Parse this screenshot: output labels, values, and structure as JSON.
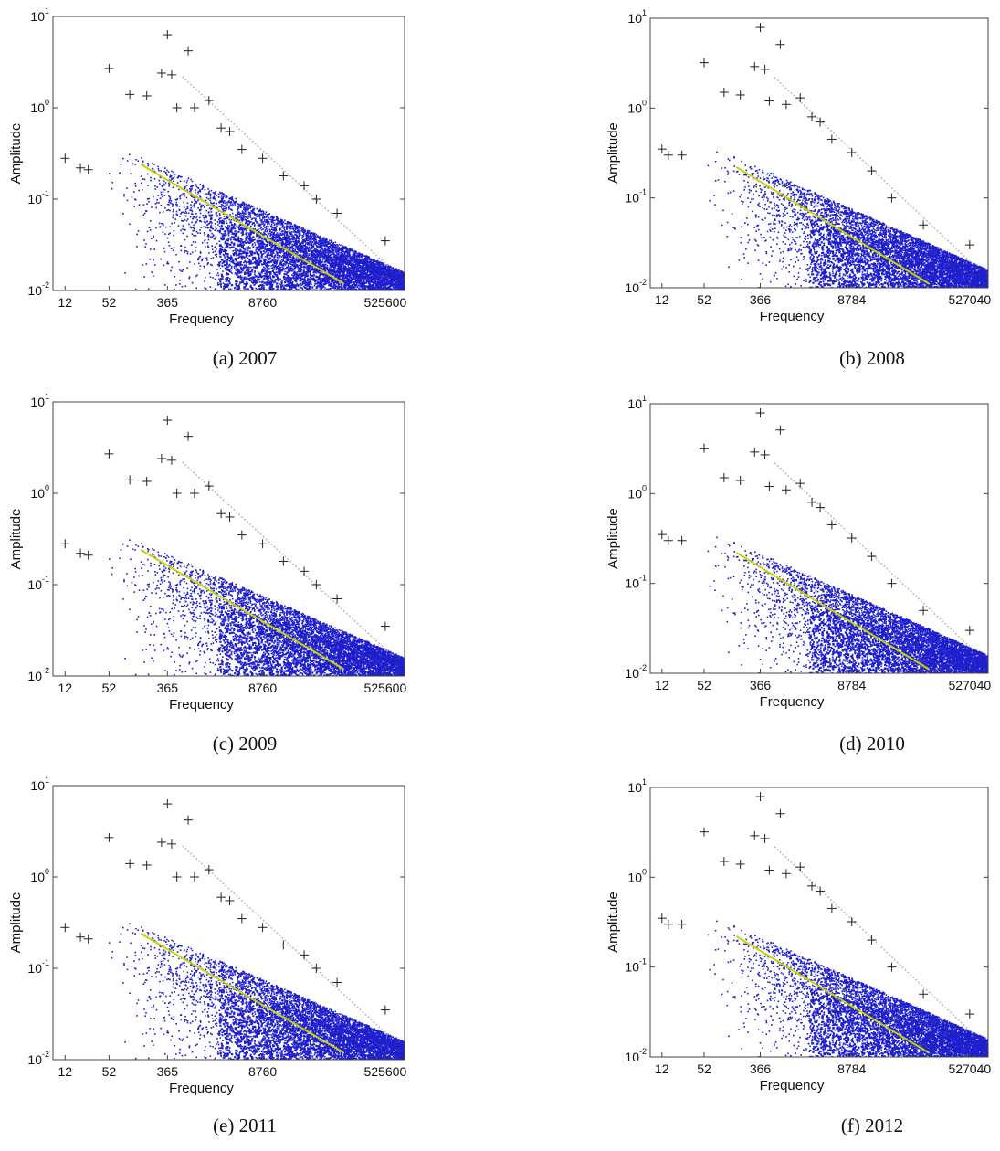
{
  "panels": [
    {
      "caption": "(a) 2007",
      "chart_data": {
        "type": "scatter",
        "xlabel": "Frequency",
        "ylabel": "Amplitude",
        "x_scale": "log",
        "y_scale": "log",
        "xlim": [
          8,
          1000000
        ],
        "ylim": [
          0.01,
          10
        ],
        "xticks": [
          12,
          52,
          365,
          8760,
          525600
        ],
        "yticks": [
          {
            "value": 0.01,
            "base": "10",
            "exp": "-2"
          },
          {
            "value": 0.1,
            "base": "10",
            "exp": "-1"
          },
          {
            "value": 1,
            "base": "10",
            "exp": "0"
          },
          {
            "value": 10,
            "base": "10",
            "exp": "1"
          }
        ],
        "series": [
          {
            "marker": "dots",
            "color": "#1f1fcc"
          },
          {
            "marker": "plus",
            "color": "#222222",
            "points": [
              [
                12,
                0.28
              ],
              [
                20,
                0.22
              ],
              [
                26,
                0.21
              ],
              [
                52,
                2.7
              ],
              [
                104,
                1.4
              ],
              [
                183,
                1.35
              ],
              [
                365,
                6.3
              ],
              [
                300,
                2.4
              ],
              [
                420,
                2.3
              ],
              [
                730,
                4.2
              ],
              [
                500,
                1.0
              ],
              [
                900,
                1.0
              ],
              [
                1460,
                1.2
              ],
              [
                2190,
                0.6
              ],
              [
                2920,
                0.55
              ],
              [
                4380,
                0.35
              ],
              [
                8760,
                0.28
              ],
              [
                17520,
                0.18
              ],
              [
                35040,
                0.14
              ],
              [
                52560,
                0.1
              ],
              [
                105120,
                0.07
              ],
              [
                525600,
                0.035
              ]
            ]
          },
          {
            "marker": "line",
            "color": "#c8d400",
            "points": [
              [
                150,
                0.24
              ],
              [
                130000,
                0.012
              ]
            ]
          }
        ]
      }
    },
    {
      "caption": "(b) 2008",
      "chart_data": {
        "type": "scatter",
        "xlabel": "Frequency",
        "ylabel": "Amplitude",
        "x_scale": "log",
        "y_scale": "log",
        "xlim": [
          8,
          1000000
        ],
        "ylim": [
          0.01,
          10
        ],
        "xticks": [
          12,
          52,
          366,
          8784,
          527040
        ],
        "yticks": [
          {
            "value": 0.01,
            "base": "10",
            "exp": "-2"
          },
          {
            "value": 0.1,
            "base": "10",
            "exp": "-1"
          },
          {
            "value": 1,
            "base": "10",
            "exp": "0"
          },
          {
            "value": 10,
            "base": "10",
            "exp": "1"
          }
        ],
        "series": [
          {
            "marker": "dots",
            "color": "#1f1fcc"
          },
          {
            "marker": "plus",
            "color": "#222222",
            "points": [
              [
                12,
                0.35
              ],
              [
                15,
                0.3
              ],
              [
                24,
                0.3
              ],
              [
                52,
                3.2
              ],
              [
                104,
                1.5
              ],
              [
                183,
                1.4
              ],
              [
                366,
                7.9
              ],
              [
                300,
                2.9
              ],
              [
                430,
                2.7
              ],
              [
                732,
                5.1
              ],
              [
                500,
                1.2
              ],
              [
                900,
                1.1
              ],
              [
                1464,
                1.3
              ],
              [
                2196,
                0.8
              ],
              [
                2928,
                0.7
              ],
              [
                4392,
                0.45
              ],
              [
                8784,
                0.32
              ],
              [
                17568,
                0.2
              ],
              [
                35136,
                0.1
              ],
              [
                105408,
                0.05
              ],
              [
                527040,
                0.03
              ]
            ]
          },
          {
            "marker": "line",
            "color": "#c8d400",
            "points": [
              [
                160,
                0.22
              ],
              [
                130000,
                0.011
              ]
            ]
          }
        ]
      }
    },
    {
      "caption": "(c) 2009",
      "chart_data": {
        "type": "scatter",
        "xlabel": "Frequency",
        "ylabel": "Amplitude",
        "x_scale": "log",
        "y_scale": "log",
        "xlim": [
          8,
          1000000
        ],
        "ylim": [
          0.01,
          10
        ],
        "xticks": [
          12,
          52,
          365,
          8760,
          525600
        ],
        "yticks": [
          {
            "value": 0.01,
            "base": "10",
            "exp": "-2"
          },
          {
            "value": 0.1,
            "base": "10",
            "exp": "-1"
          },
          {
            "value": 1,
            "base": "10",
            "exp": "0"
          },
          {
            "value": 10,
            "base": "10",
            "exp": "1"
          }
        ],
        "series": [
          {
            "marker": "dots",
            "color": "#1f1fcc"
          },
          {
            "marker": "plus",
            "color": "#222222",
            "points": [
              [
                12,
                0.28
              ],
              [
                20,
                0.22
              ],
              [
                26,
                0.21
              ],
              [
                52,
                2.7
              ],
              [
                104,
                1.4
              ],
              [
                183,
                1.35
              ],
              [
                365,
                6.3
              ],
              [
                300,
                2.4
              ],
              [
                420,
                2.3
              ],
              [
                730,
                4.2
              ],
              [
                500,
                1.0
              ],
              [
                900,
                1.0
              ],
              [
                1460,
                1.2
              ],
              [
                2190,
                0.6
              ],
              [
                2920,
                0.55
              ],
              [
                4380,
                0.35
              ],
              [
                8760,
                0.28
              ],
              [
                17520,
                0.18
              ],
              [
                35040,
                0.14
              ],
              [
                52560,
                0.1
              ],
              [
                105120,
                0.07
              ],
              [
                525600,
                0.035
              ]
            ]
          },
          {
            "marker": "line",
            "color": "#c8d400",
            "points": [
              [
                150,
                0.24
              ],
              [
                130000,
                0.012
              ]
            ]
          }
        ]
      }
    },
    {
      "caption": "(d) 2010",
      "chart_data": {
        "type": "scatter",
        "xlabel": "Frequency",
        "ylabel": "Amplitude",
        "x_scale": "log",
        "y_scale": "log",
        "xlim": [
          8,
          1000000
        ],
        "ylim": [
          0.01,
          10
        ],
        "xticks": [
          12,
          52,
          366,
          8784,
          527040
        ],
        "yticks": [
          {
            "value": 0.01,
            "base": "10",
            "exp": "-2"
          },
          {
            "value": 0.1,
            "base": "10",
            "exp": "-1"
          },
          {
            "value": 1,
            "base": "10",
            "exp": "0"
          },
          {
            "value": 10,
            "base": "10",
            "exp": "1"
          }
        ],
        "series": [
          {
            "marker": "dots",
            "color": "#1f1fcc"
          },
          {
            "marker": "plus",
            "color": "#222222",
            "points": [
              [
                12,
                0.35
              ],
              [
                15,
                0.3
              ],
              [
                24,
                0.3
              ],
              [
                52,
                3.2
              ],
              [
                104,
                1.5
              ],
              [
                183,
                1.4
              ],
              [
                366,
                7.9
              ],
              [
                300,
                2.9
              ],
              [
                430,
                2.7
              ],
              [
                732,
                5.1
              ],
              [
                500,
                1.2
              ],
              [
                900,
                1.1
              ],
              [
                1464,
                1.3
              ],
              [
                2196,
                0.8
              ],
              [
                2928,
                0.7
              ],
              [
                4392,
                0.45
              ],
              [
                8784,
                0.32
              ],
              [
                17568,
                0.2
              ],
              [
                35136,
                0.1
              ],
              [
                105408,
                0.05
              ],
              [
                527040,
                0.03
              ]
            ]
          },
          {
            "marker": "line",
            "color": "#c8d400",
            "points": [
              [
                160,
                0.22
              ],
              [
                130000,
                0.011
              ]
            ]
          }
        ]
      }
    },
    {
      "caption": "(e) 2011",
      "chart_data": {
        "type": "scatter",
        "xlabel": "Frequency",
        "ylabel": "Amplitude",
        "x_scale": "log",
        "y_scale": "log",
        "xlim": [
          8,
          1000000
        ],
        "ylim": [
          0.01,
          10
        ],
        "xticks": [
          12,
          52,
          365,
          8760,
          525600
        ],
        "yticks": [
          {
            "value": 0.01,
            "base": "10",
            "exp": "-2"
          },
          {
            "value": 0.1,
            "base": "10",
            "exp": "-1"
          },
          {
            "value": 1,
            "base": "10",
            "exp": "0"
          },
          {
            "value": 10,
            "base": "10",
            "exp": "1"
          }
        ],
        "series": [
          {
            "marker": "dots",
            "color": "#1f1fcc"
          },
          {
            "marker": "plus",
            "color": "#222222",
            "points": [
              [
                12,
                0.28
              ],
              [
                20,
                0.22
              ],
              [
                26,
                0.21
              ],
              [
                52,
                2.7
              ],
              [
                104,
                1.4
              ],
              [
                183,
                1.35
              ],
              [
                365,
                6.3
              ],
              [
                300,
                2.4
              ],
              [
                420,
                2.3
              ],
              [
                730,
                4.2
              ],
              [
                500,
                1.0
              ],
              [
                900,
                1.0
              ],
              [
                1460,
                1.2
              ],
              [
                2190,
                0.6
              ],
              [
                2920,
                0.55
              ],
              [
                4380,
                0.35
              ],
              [
                8760,
                0.28
              ],
              [
                17520,
                0.18
              ],
              [
                35040,
                0.14
              ],
              [
                52560,
                0.1
              ],
              [
                105120,
                0.07
              ],
              [
                525600,
                0.035
              ]
            ]
          },
          {
            "marker": "line",
            "color": "#c8d400",
            "points": [
              [
                150,
                0.24
              ],
              [
                130000,
                0.012
              ]
            ]
          }
        ]
      }
    },
    {
      "caption": "(f) 2012",
      "chart_data": {
        "type": "scatter",
        "xlabel": "Frequency",
        "ylabel": "Amplitude",
        "x_scale": "log",
        "y_scale": "log",
        "xlim": [
          8,
          1000000
        ],
        "ylim": [
          0.01,
          10
        ],
        "xticks": [
          12,
          52,
          366,
          8784,
          527040
        ],
        "yticks": [
          {
            "value": 0.01,
            "base": "10",
            "exp": "-2"
          },
          {
            "value": 0.1,
            "base": "10",
            "exp": "-1"
          },
          {
            "value": 1,
            "base": "10",
            "exp": "0"
          },
          {
            "value": 10,
            "base": "10",
            "exp": "1"
          }
        ],
        "series": [
          {
            "marker": "dots",
            "color": "#1f1fcc"
          },
          {
            "marker": "plus",
            "color": "#222222",
            "points": [
              [
                12,
                0.35
              ],
              [
                15,
                0.3
              ],
              [
                24,
                0.3
              ],
              [
                52,
                3.2
              ],
              [
                104,
                1.5
              ],
              [
                183,
                1.4
              ],
              [
                366,
                7.9
              ],
              [
                300,
                2.9
              ],
              [
                430,
                2.7
              ],
              [
                732,
                5.1
              ],
              [
                500,
                1.2
              ],
              [
                900,
                1.1
              ],
              [
                1464,
                1.3
              ],
              [
                2196,
                0.8
              ],
              [
                2928,
                0.7
              ],
              [
                4392,
                0.45
              ],
              [
                8784,
                0.32
              ],
              [
                17568,
                0.2
              ],
              [
                35136,
                0.1
              ],
              [
                105408,
                0.05
              ],
              [
                527040,
                0.03
              ]
            ]
          },
          {
            "marker": "line",
            "color": "#c8d400",
            "points": [
              [
                160,
                0.22
              ],
              [
                130000,
                0.011
              ]
            ]
          }
        ]
      }
    }
  ]
}
